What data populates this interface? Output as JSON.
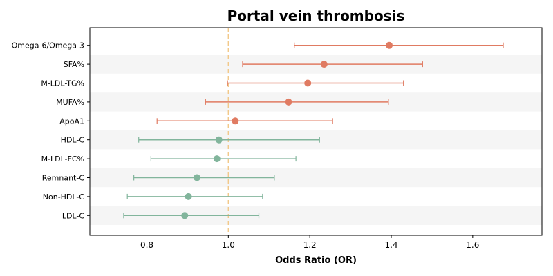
{
  "chart_data": {
    "type": "forest",
    "title": "Portal vein thrombosis",
    "xlabel": "Odds Ratio (OR)",
    "xlim": [
      0.66,
      1.77
    ],
    "xticks": [
      "0.8",
      "1.0",
      "1.2",
      "1.4",
      "1.6"
    ],
    "reference_line": 1.0,
    "colors": {
      "positive": "#e07b62",
      "negative": "#82b59c",
      "reference": "#f2c98a",
      "band": "#f5f5f5"
    },
    "categories": [
      "Omega-6/Omega-3",
      "SFA%",
      "M-LDL-TG%",
      "MUFA%",
      "ApoA1",
      "HDL-C",
      "M-LDL-FC%",
      "Remnant-C",
      "Non-HDL-C",
      "LDL-C"
    ],
    "or": [
      1.395,
      1.235,
      1.195,
      1.148,
      1.017,
      0.977,
      0.972,
      0.923,
      0.902,
      0.893
    ],
    "ci_low": [
      1.162,
      1.035,
      0.998,
      0.944,
      0.825,
      0.78,
      0.81,
      0.768,
      0.752,
      0.743
    ],
    "ci_high": [
      1.675,
      1.477,
      1.43,
      1.393,
      1.256,
      1.224,
      1.166,
      1.113,
      1.084,
      1.075
    ]
  }
}
